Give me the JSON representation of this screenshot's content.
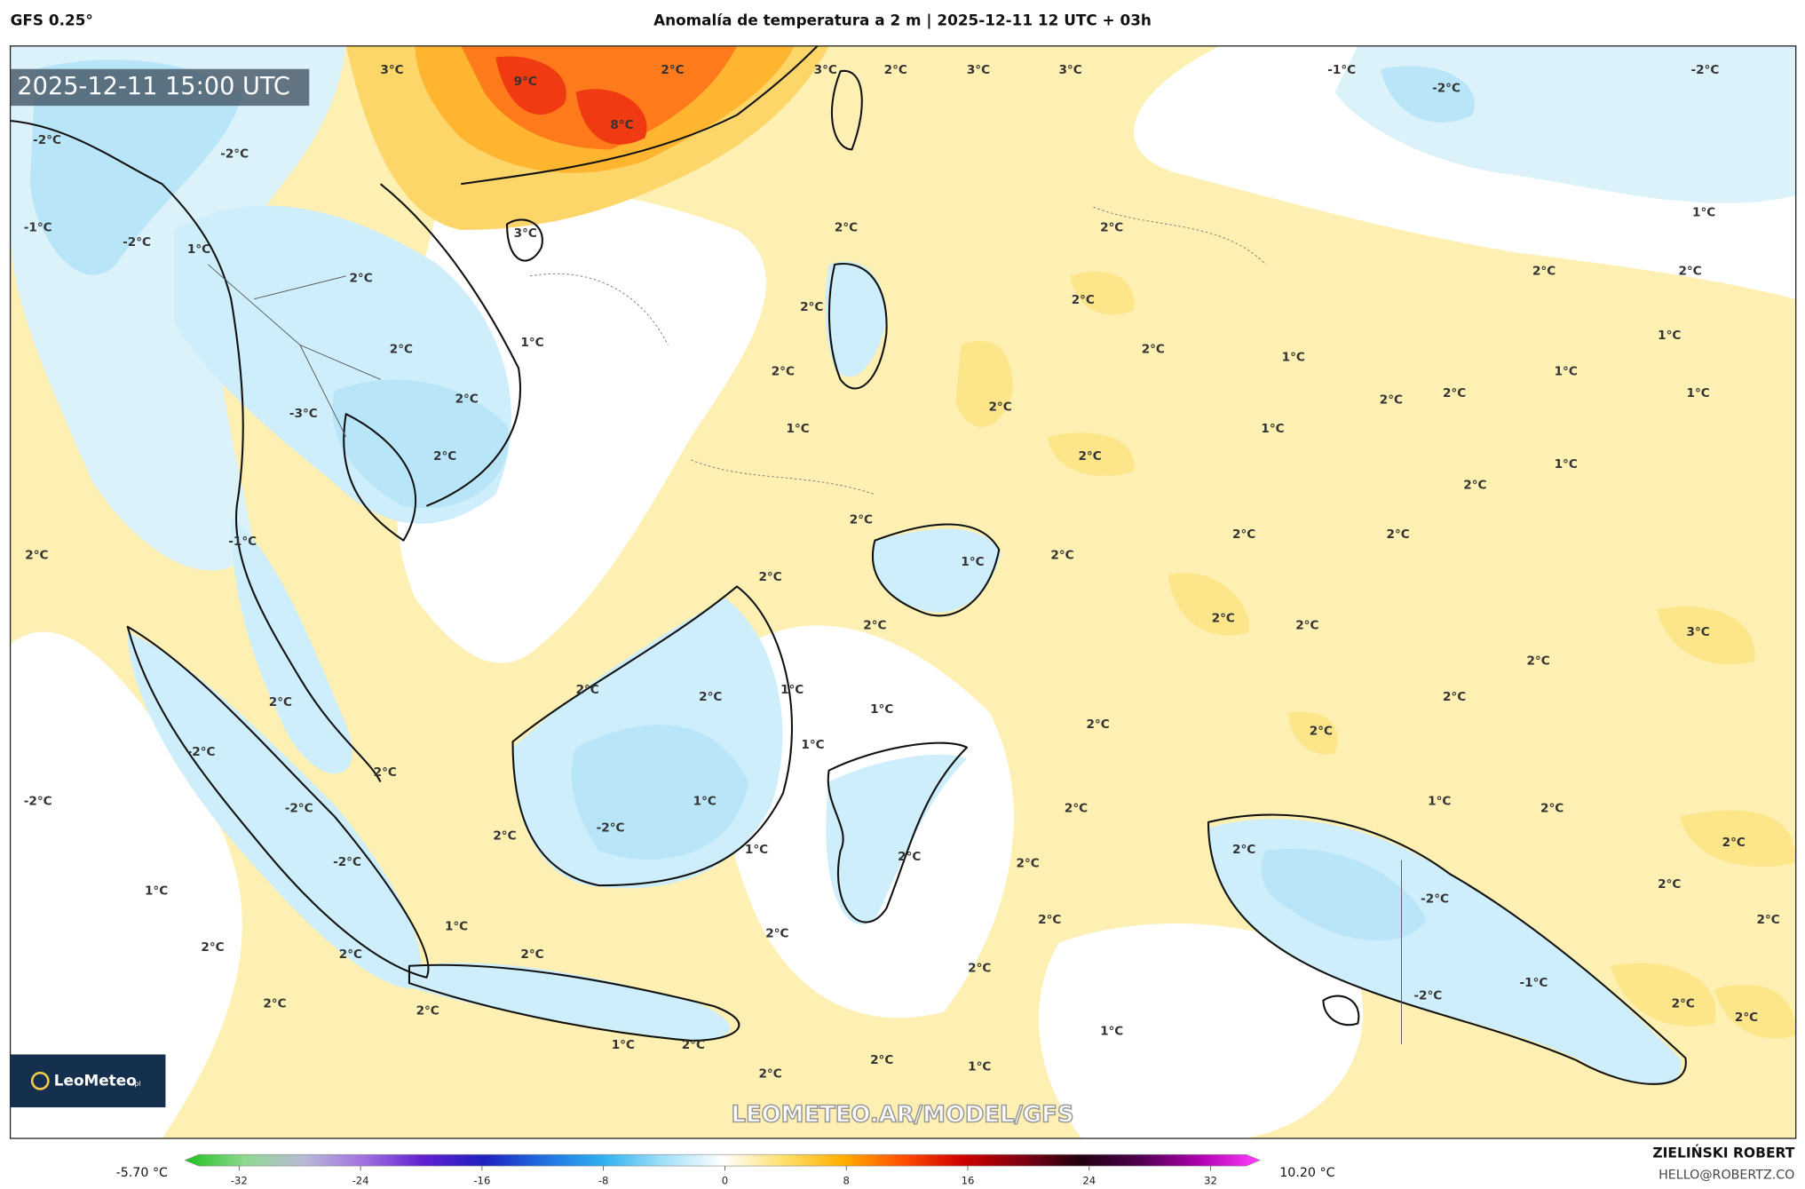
{
  "header": {
    "model": "GFS 0.25°",
    "title": "Anomalía de temperatura a 2 m | 2025-12-11 12 UTC + 03h"
  },
  "timestamp": "2025-12-11 15:00 UTC",
  "watermark": "LEOMETEO.AR/MODEL/GFS",
  "logo": {
    "name": "LeoMeteo",
    "suffix": ".pl"
  },
  "credits": {
    "author": "ZIELIŃSKI ROBERT",
    "email": "HELLO@ROBERTZ.CO"
  },
  "colorbar": {
    "min": {
      "value": -5.7,
      "label": "-5.70 °C"
    },
    "max": {
      "value": 10.2,
      "label": "10.20 °C"
    },
    "ticks": [
      -32,
      -24,
      -16,
      -8,
      0,
      8,
      16,
      24,
      32
    ],
    "colors": [
      "#1fc21f",
      "#8fd88f",
      "#b8b8d8",
      "#a070e0",
      "#6020d0",
      "#2020c0",
      "#2070e0",
      "#30b0f0",
      "#a0e0f8",
      "#ffffff",
      "#ffe070",
      "#ffb000",
      "#ff5000",
      "#d00000",
      "#800010",
      "#200010",
      "#500050",
      "#b000b0",
      "#ff40ff"
    ]
  },
  "contour_labels": [
    "3°C",
    "9°C",
    "2°C",
    "8°C",
    "3°C",
    "2°C",
    "3°C",
    "3°C",
    "-1°C",
    "-2°C",
    "-2°C",
    "-2°C",
    "-2°C",
    "-1°C",
    "-2°C",
    "1°C",
    "3°C",
    "2°C",
    "2°C",
    "1°C",
    "2°C",
    "2°C",
    "2°C",
    "2°C",
    "2°C",
    "1°C",
    "2°C",
    "1°C",
    "2°C",
    "1°C",
    "2°C",
    "1°C",
    "2°C",
    "2°C",
    "2°C",
    "2°C",
    "1°C",
    "-3°C",
    "1°C",
    "1°C",
    "2°C",
    "2°C",
    "1°C",
    "2°C",
    "2°C",
    "-1°C",
    "2°C",
    "2°C",
    "2°C",
    "2°C",
    "1°C",
    "2°C",
    "2°C",
    "2°C",
    "2°C",
    "3°C",
    "2°C",
    "2°C",
    "2°C",
    "1°C",
    "2°C",
    "2°C",
    "1°C",
    "2°C",
    "2°C",
    "-2°C",
    "1°C",
    "2°C",
    "-2°C",
    "1°C",
    "1°C",
    "-2°C",
    "2°C",
    "2°C",
    "-2°C",
    "2°C",
    "1°C",
    "2°C",
    "2°C",
    "-2°C",
    "2°C",
    "2°C",
    "-2°C",
    "1°C",
    "2°C",
    "1°C",
    "2°C",
    "2°C",
    "2°C",
    "2°C",
    "2°C",
    "2°C",
    "2°C",
    "-1°C",
    "-2°C",
    "2°C",
    "2°C",
    "2°C",
    "2°C",
    "1°C",
    "1°C",
    "2°C",
    "2°C",
    "1°C",
    "2°C"
  ]
}
